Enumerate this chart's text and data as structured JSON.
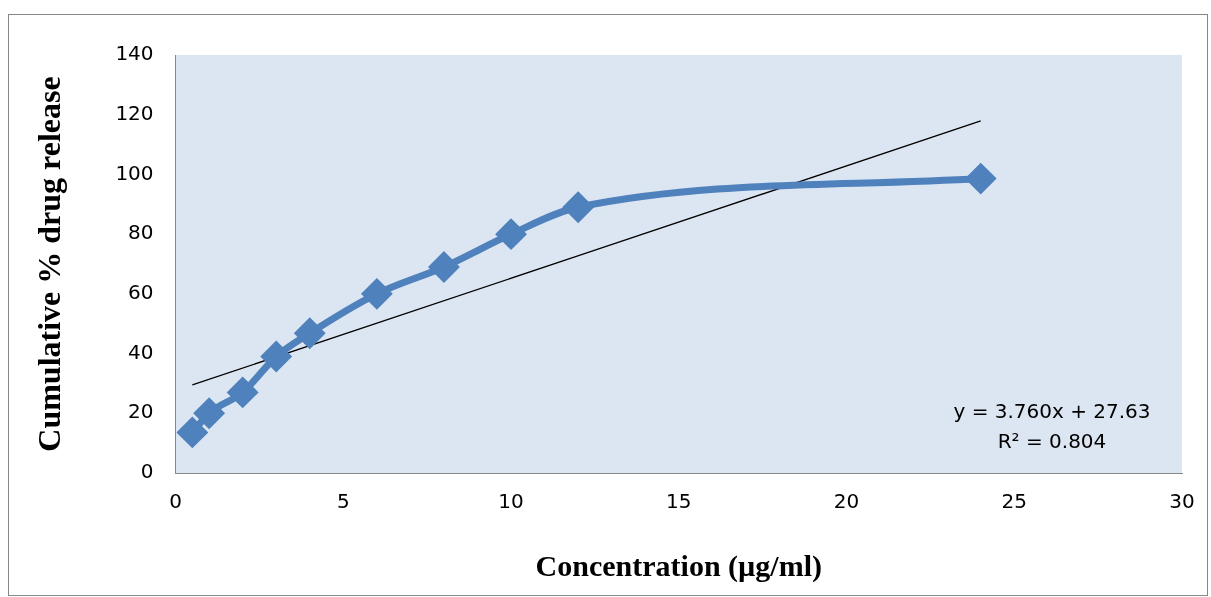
{
  "chart_data": {
    "type": "line",
    "xlabel": "Concentration (µg/ml)",
    "ylabel": "Cumulative % drug release",
    "x": [
      0.5,
      1,
      2,
      3,
      4,
      6,
      8,
      10,
      12,
      24
    ],
    "series": [
      {
        "color": "#4f81bd",
        "values": [
          13.6,
          20,
          27,
          39,
          46.8,
          60,
          69,
          80,
          89,
          98.6
        ],
        "marker": "diamond"
      },
      {
        "type": "line",
        "color": "#000000",
        "x": [
          0.5,
          24
        ],
        "values": [
          29.5,
          117.9
        ],
        "marker": "none"
      }
    ],
    "xlim": [
      0,
      30
    ],
    "xticks": [
      0,
      5,
      10,
      15,
      20,
      25,
      30
    ],
    "ylim": [
      0,
      140
    ],
    "yticks": [
      0,
      20,
      40,
      60,
      80,
      100,
      120,
      140
    ],
    "grid": false,
    "legend": false,
    "annotations": [
      "y = 3.760x + 27.63",
      "R² = 0.804"
    ]
  }
}
